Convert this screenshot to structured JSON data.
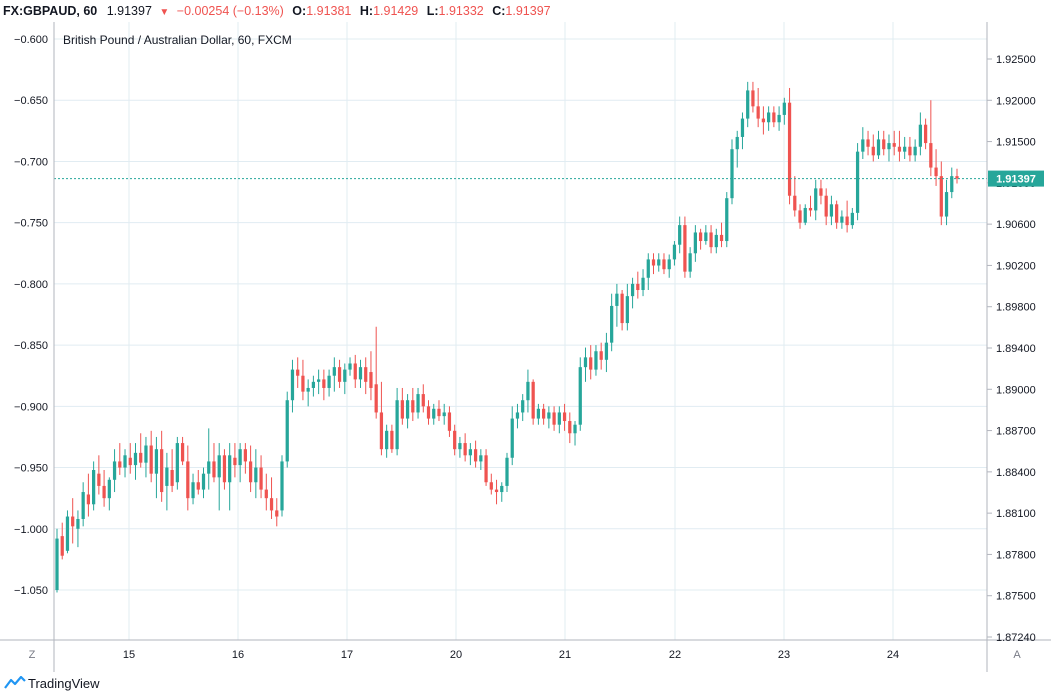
{
  "header": {
    "symbol": "FX:GBPAUD, 60",
    "last": "1.91397",
    "arrow": "▼",
    "change": "−0.00254 (−0.13%)",
    "o_label": "O:",
    "o_value": "1.91381",
    "h_label": "H:",
    "h_value": "1.91429",
    "l_label": "L:",
    "l_value": "1.91332",
    "c_label": "C:",
    "c_value": "1.91397"
  },
  "footer": {
    "brand": "TradingView",
    "left_scale_button": "Z",
    "right_scale_button": "A"
  },
  "colors": {
    "up": "#26a69a",
    "down": "#ef5350",
    "grid": "#e1ecf2",
    "price_line": "#26a69a",
    "text": "#131722"
  },
  "chart_data": {
    "type": "candlestick",
    "title": "British Pound / Australian Dollar, 60, FXCM",
    "left_axis": {
      "ticks": [
        "−0.600",
        "−0.650",
        "−0.700",
        "−0.750",
        "−0.800",
        "−0.850",
        "−0.900",
        "−0.950",
        "−1.000",
        "−1.050"
      ],
      "ylim": [
        -1.1,
        -0.585
      ]
    },
    "right_axis": {
      "ticks": [
        "1.92500",
        "1.92000",
        "1.91500",
        "1.91000",
        "1.90600",
        "1.90200",
        "1.89800",
        "1.89400",
        "1.89000",
        "1.88700",
        "1.88400",
        "1.88100",
        "1.87800",
        "1.87500",
        "1.87240"
      ]
    },
    "x_ticks": [
      "15",
      "16",
      "17",
      "20",
      "21",
      "22",
      "23",
      "24"
    ],
    "current_price": -0.714,
    "current_price_label": "1.91397",
    "candles": [
      {
        "o": -1.05,
        "h": -1.0,
        "l": -1.052,
        "c": -1.008
      },
      {
        "o": -1.006,
        "h": -0.995,
        "l": -1.025,
        "c": -1.022
      },
      {
        "o": -1.018,
        "h": -0.985,
        "l": -1.02,
        "c": -0.99
      },
      {
        "o": -0.99,
        "h": -0.975,
        "l": -1.012,
        "c": -0.998
      },
      {
        "o": -1.0,
        "h": -0.985,
        "l": -1.015,
        "c": -0.992
      },
      {
        "o": -0.992,
        "h": -0.962,
        "l": -0.998,
        "c": -0.97
      },
      {
        "o": -0.972,
        "h": -0.955,
        "l": -0.99,
        "c": -0.98
      },
      {
        "o": -0.98,
        "h": -0.945,
        "l": -0.985,
        "c": -0.952
      },
      {
        "o": -0.955,
        "h": -0.94,
        "l": -0.972,
        "c": -0.965
      },
      {
        "o": -0.965,
        "h": -0.952,
        "l": -0.982,
        "c": -0.975
      },
      {
        "o": -0.975,
        "h": -0.958,
        "l": -0.985,
        "c": -0.96
      },
      {
        "o": -0.96,
        "h": -0.935,
        "l": -0.97,
        "c": -0.945
      },
      {
        "o": -0.945,
        "h": -0.93,
        "l": -0.956,
        "c": -0.95
      },
      {
        "o": -0.95,
        "h": -0.935,
        "l": -0.958,
        "c": -0.94
      },
      {
        "o": -0.942,
        "h": -0.93,
        "l": -0.955,
        "c": -0.948
      },
      {
        "o": -0.948,
        "h": -0.93,
        "l": -0.96,
        "c": -0.938
      },
      {
        "o": -0.938,
        "h": -0.922,
        "l": -0.95,
        "c": -0.946
      },
      {
        "o": -0.946,
        "h": -0.925,
        "l": -0.958,
        "c": -0.932
      },
      {
        "o": -0.932,
        "h": -0.92,
        "l": -0.962,
        "c": -0.955
      },
      {
        "o": -0.955,
        "h": -0.925,
        "l": -0.975,
        "c": -0.935
      },
      {
        "o": -0.935,
        "h": -0.92,
        "l": -0.978,
        "c": -0.97
      },
      {
        "o": -0.965,
        "h": -0.938,
        "l": -0.985,
        "c": -0.95
      },
      {
        "o": -0.952,
        "h": -0.935,
        "l": -0.97,
        "c": -0.965
      },
      {
        "o": -0.962,
        "h": -0.925,
        "l": -0.968,
        "c": -0.93
      },
      {
        "o": -0.93,
        "h": -0.925,
        "l": -0.948,
        "c": -0.945
      },
      {
        "o": -0.945,
        "h": -0.932,
        "l": -0.985,
        "c": -0.975
      },
      {
        "o": -0.975,
        "h": -0.955,
        "l": -0.98,
        "c": -0.962
      },
      {
        "o": -0.962,
        "h": -0.952,
        "l": -0.972,
        "c": -0.968
      },
      {
        "o": -0.968,
        "h": -0.95,
        "l": -0.975,
        "c": -0.955
      },
      {
        "o": -0.955,
        "h": -0.918,
        "l": -0.968,
        "c": -0.945
      },
      {
        "o": -0.945,
        "h": -0.93,
        "l": -0.962,
        "c": -0.958
      },
      {
        "o": -0.958,
        "h": -0.93,
        "l": -0.985,
        "c": -0.94
      },
      {
        "o": -0.94,
        "h": -0.935,
        "l": -0.968,
        "c": -0.962
      },
      {
        "o": -0.962,
        "h": -0.93,
        "l": -0.985,
        "c": -0.94
      },
      {
        "o": -0.942,
        "h": -0.93,
        "l": -0.958,
        "c": -0.948
      },
      {
        "o": -0.948,
        "h": -0.93,
        "l": -0.962,
        "c": -0.935
      },
      {
        "o": -0.935,
        "h": -0.93,
        "l": -0.955,
        "c": -0.945
      },
      {
        "o": -0.945,
        "h": -0.932,
        "l": -0.97,
        "c": -0.962
      },
      {
        "o": -0.962,
        "h": -0.935,
        "l": -0.975,
        "c": -0.95
      },
      {
        "o": -0.95,
        "h": -0.94,
        "l": -0.975,
        "c": -0.968
      },
      {
        "o": -0.968,
        "h": -0.955,
        "l": -0.985,
        "c": -0.975
      },
      {
        "o": -0.975,
        "h": -0.958,
        "l": -0.992,
        "c": -0.985
      },
      {
        "o": -0.985,
        "h": -0.975,
        "l": -0.998,
        "c": -0.99
      },
      {
        "o": -0.985,
        "h": -0.94,
        "l": -0.99,
        "c": -0.945
      },
      {
        "o": -0.945,
        "h": -0.888,
        "l": -0.95,
        "c": -0.895
      },
      {
        "o": -0.895,
        "h": -0.862,
        "l": -0.905,
        "c": -0.87
      },
      {
        "o": -0.87,
        "h": -0.86,
        "l": -0.885,
        "c": -0.875
      },
      {
        "o": -0.875,
        "h": -0.862,
        "l": -0.895,
        "c": -0.888
      },
      {
        "o": -0.888,
        "h": -0.878,
        "l": -0.9,
        "c": -0.885
      },
      {
        "o": -0.885,
        "h": -0.875,
        "l": -0.892,
        "c": -0.88
      },
      {
        "o": -0.88,
        "h": -0.87,
        "l": -0.89,
        "c": -0.878
      },
      {
        "o": -0.878,
        "h": -0.87,
        "l": -0.895,
        "c": -0.885
      },
      {
        "o": -0.885,
        "h": -0.87,
        "l": -0.892,
        "c": -0.875
      },
      {
        "o": -0.875,
        "h": -0.86,
        "l": -0.888,
        "c": -0.868
      },
      {
        "o": -0.868,
        "h": -0.862,
        "l": -0.885,
        "c": -0.88
      },
      {
        "o": -0.88,
        "h": -0.865,
        "l": -0.89,
        "c": -0.87
      },
      {
        "o": -0.87,
        "h": -0.86,
        "l": -0.875,
        "c": -0.865
      },
      {
        "o": -0.865,
        "h": -0.858,
        "l": -0.885,
        "c": -0.878
      },
      {
        "o": -0.878,
        "h": -0.862,
        "l": -0.885,
        "c": -0.868
      },
      {
        "o": -0.868,
        "h": -0.86,
        "l": -0.89,
        "c": -0.88
      },
      {
        "o": -0.872,
        "h": -0.855,
        "l": -0.895,
        "c": -0.885
      },
      {
        "o": -0.882,
        "h": -0.835,
        "l": -0.91,
        "c": -0.905
      },
      {
        "o": -0.905,
        "h": -0.88,
        "l": -0.94,
        "c": -0.935
      },
      {
        "o": -0.935,
        "h": -0.915,
        "l": -0.942,
        "c": -0.92
      },
      {
        "o": -0.92,
        "h": -0.915,
        "l": -0.938,
        "c": -0.935
      },
      {
        "o": -0.935,
        "h": -0.885,
        "l": -0.94,
        "c": -0.895
      },
      {
        "o": -0.895,
        "h": -0.885,
        "l": -0.915,
        "c": -0.91
      },
      {
        "o": -0.91,
        "h": -0.89,
        "l": -0.918,
        "c": -0.895
      },
      {
        "o": -0.895,
        "h": -0.885,
        "l": -0.912,
        "c": -0.905
      },
      {
        "o": -0.905,
        "h": -0.885,
        "l": -0.91,
        "c": -0.89
      },
      {
        "o": -0.89,
        "h": -0.882,
        "l": -0.905,
        "c": -0.9
      },
      {
        "o": -0.9,
        "h": -0.895,
        "l": -0.915,
        "c": -0.91
      },
      {
        "o": -0.91,
        "h": -0.898,
        "l": -0.915,
        "c": -0.902
      },
      {
        "o": -0.902,
        "h": -0.895,
        "l": -0.912,
        "c": -0.908
      },
      {
        "o": -0.908,
        "h": -0.898,
        "l": -0.915,
        "c": -0.905
      },
      {
        "o": -0.905,
        "h": -0.9,
        "l": -0.925,
        "c": -0.92
      },
      {
        "o": -0.92,
        "h": -0.915,
        "l": -0.94,
        "c": -0.935
      },
      {
        "o": -0.935,
        "h": -0.925,
        "l": -0.942,
        "c": -0.93
      },
      {
        "o": -0.93,
        "h": -0.922,
        "l": -0.945,
        "c": -0.94
      },
      {
        "o": -0.94,
        "h": -0.93,
        "l": -0.948,
        "c": -0.935
      },
      {
        "o": -0.935,
        "h": -0.928,
        "l": -0.95,
        "c": -0.945
      },
      {
        "o": -0.945,
        "h": -0.935,
        "l": -0.952,
        "c": -0.94
      },
      {
        "o": -0.94,
        "h": -0.935,
        "l": -0.965,
        "c": -0.962
      },
      {
        "o": -0.962,
        "h": -0.955,
        "l": -0.972,
        "c": -0.968
      },
      {
        "o": -0.968,
        "h": -0.96,
        "l": -0.98,
        "c": -0.97
      },
      {
        "o": -0.97,
        "h": -0.962,
        "l": -0.978,
        "c": -0.965
      },
      {
        "o": -0.965,
        "h": -0.938,
        "l": -0.97,
        "c": -0.942
      },
      {
        "o": -0.942,
        "h": -0.9,
        "l": -0.948,
        "c": -0.91
      },
      {
        "o": -0.91,
        "h": -0.898,
        "l": -0.918,
        "c": -0.905
      },
      {
        "o": -0.905,
        "h": -0.89,
        "l": -0.912,
        "c": -0.895
      },
      {
        "o": -0.895,
        "h": -0.87,
        "l": -0.905,
        "c": -0.88
      },
      {
        "o": -0.88,
        "h": -0.878,
        "l": -0.915,
        "c": -0.91
      },
      {
        "o": -0.91,
        "h": -0.898,
        "l": -0.915,
        "c": -0.902
      },
      {
        "o": -0.902,
        "h": -0.898,
        "l": -0.915,
        "c": -0.91
      },
      {
        "o": -0.91,
        "h": -0.9,
        "l": -0.918,
        "c": -0.905
      },
      {
        "o": -0.905,
        "h": -0.9,
        "l": -0.92,
        "c": -0.915
      },
      {
        "o": -0.915,
        "h": -0.9,
        "l": -0.922,
        "c": -0.905
      },
      {
        "o": -0.905,
        "h": -0.898,
        "l": -0.92,
        "c": -0.912
      },
      {
        "o": -0.912,
        "h": -0.905,
        "l": -0.93,
        "c": -0.922
      },
      {
        "o": -0.922,
        "h": -0.912,
        "l": -0.932,
        "c": -0.915
      },
      {
        "o": -0.915,
        "h": -0.86,
        "l": -0.92,
        "c": -0.868
      },
      {
        "o": -0.868,
        "h": -0.852,
        "l": -0.88,
        "c": -0.86
      },
      {
        "o": -0.86,
        "h": -0.85,
        "l": -0.878,
        "c": -0.87
      },
      {
        "o": -0.87,
        "h": -0.85,
        "l": -0.875,
        "c": -0.855
      },
      {
        "o": -0.855,
        "h": -0.848,
        "l": -0.87,
        "c": -0.862
      },
      {
        "o": -0.862,
        "h": -0.84,
        "l": -0.872,
        "c": -0.848
      },
      {
        "o": -0.848,
        "h": -0.808,
        "l": -0.855,
        "c": -0.818
      },
      {
        "o": -0.818,
        "h": -0.8,
        "l": -0.835,
        "c": -0.808
      },
      {
        "o": -0.808,
        "h": -0.805,
        "l": -0.838,
        "c": -0.832
      },
      {
        "o": -0.832,
        "h": -0.8,
        "l": -0.838,
        "c": -0.81
      },
      {
        "o": -0.81,
        "h": -0.795,
        "l": -0.82,
        "c": -0.8
      },
      {
        "o": -0.8,
        "h": -0.79,
        "l": -0.812,
        "c": -0.805
      },
      {
        "o": -0.805,
        "h": -0.788,
        "l": -0.81,
        "c": -0.795
      },
      {
        "o": -0.795,
        "h": -0.775,
        "l": -0.805,
        "c": -0.78
      },
      {
        "o": -0.78,
        "h": -0.775,
        "l": -0.792,
        "c": -0.785
      },
      {
        "o": -0.785,
        "h": -0.775,
        "l": -0.79,
        "c": -0.78
      },
      {
        "o": -0.78,
        "h": -0.775,
        "l": -0.792,
        "c": -0.788
      },
      {
        "o": -0.788,
        "h": -0.776,
        "l": -0.795,
        "c": -0.78
      },
      {
        "o": -0.78,
        "h": -0.765,
        "l": -0.785,
        "c": -0.768
      },
      {
        "o": -0.768,
        "h": -0.745,
        "l": -0.775,
        "c": -0.752
      },
      {
        "o": -0.752,
        "h": -0.745,
        "l": -0.795,
        "c": -0.79
      },
      {
        "o": -0.79,
        "h": -0.77,
        "l": -0.795,
        "c": -0.775
      },
      {
        "o": -0.775,
        "h": -0.752,
        "l": -0.782,
        "c": -0.758
      },
      {
        "o": -0.758,
        "h": -0.755,
        "l": -0.772,
        "c": -0.765
      },
      {
        "o": -0.765,
        "h": -0.752,
        "l": -0.768,
        "c": -0.758
      },
      {
        "o": -0.758,
        "h": -0.752,
        "l": -0.775,
        "c": -0.77
      },
      {
        "o": -0.77,
        "h": -0.755,
        "l": -0.775,
        "c": -0.76
      },
      {
        "o": -0.76,
        "h": -0.75,
        "l": -0.77,
        "c": -0.765
      },
      {
        "o": -0.765,
        "h": -0.725,
        "l": -0.77,
        "c": -0.73
      },
      {
        "o": -0.73,
        "h": -0.682,
        "l": -0.735,
        "c": -0.69
      },
      {
        "o": -0.69,
        "h": -0.675,
        "l": -0.705,
        "c": -0.68
      },
      {
        "o": -0.68,
        "h": -0.66,
        "l": -0.69,
        "c": -0.665
      },
      {
        "o": -0.665,
        "h": -0.635,
        "l": -0.672,
        "c": -0.642
      },
      {
        "o": -0.642,
        "h": -0.635,
        "l": -0.66,
        "c": -0.655
      },
      {
        "o": -0.655,
        "h": -0.64,
        "l": -0.672,
        "c": -0.665
      },
      {
        "o": -0.665,
        "h": -0.655,
        "l": -0.678,
        "c": -0.668
      },
      {
        "o": -0.668,
        "h": -0.655,
        "l": -0.675,
        "c": -0.66
      },
      {
        "o": -0.66,
        "h": -0.655,
        "l": -0.672,
        "c": -0.668
      },
      {
        "o": -0.668,
        "h": -0.655,
        "l": -0.675,
        "c": -0.662
      },
      {
        "o": -0.662,
        "h": -0.648,
        "l": -0.67,
        "c": -0.652
      },
      {
        "o": -0.652,
        "h": -0.64,
        "l": -0.735,
        "c": -0.728
      },
      {
        "o": -0.728,
        "h": -0.712,
        "l": -0.745,
        "c": -0.74
      },
      {
        "o": -0.74,
        "h": -0.735,
        "l": -0.755,
        "c": -0.75
      },
      {
        "o": -0.75,
        "h": -0.735,
        "l": -0.752,
        "c": -0.738
      },
      {
        "o": -0.738,
        "h": -0.728,
        "l": -0.745,
        "c": -0.74
      },
      {
        "o": -0.74,
        "h": -0.715,
        "l": -0.748,
        "c": -0.722
      },
      {
        "o": -0.722,
        "h": -0.715,
        "l": -0.735,
        "c": -0.728
      },
      {
        "o": -0.728,
        "h": -0.722,
        "l": -0.752,
        "c": -0.745
      },
      {
        "o": -0.745,
        "h": -0.728,
        "l": -0.752,
        "c": -0.735
      },
      {
        "o": -0.735,
        "h": -0.732,
        "l": -0.755,
        "c": -0.75
      },
      {
        "o": -0.75,
        "h": -0.74,
        "l": -0.755,
        "c": -0.745
      },
      {
        "o": -0.745,
        "h": -0.732,
        "l": -0.758,
        "c": -0.752
      },
      {
        "o": -0.752,
        "h": -0.738,
        "l": -0.755,
        "c": -0.742
      },
      {
        "o": -0.742,
        "h": -0.685,
        "l": -0.748,
        "c": -0.692
      },
      {
        "o": -0.692,
        "h": -0.672,
        "l": -0.698,
        "c": -0.682
      },
      {
        "o": -0.682,
        "h": -0.675,
        "l": -0.695,
        "c": -0.688
      },
      {
        "o": -0.688,
        "h": -0.678,
        "l": -0.7,
        "c": -0.695
      },
      {
        "o": -0.695,
        "h": -0.675,
        "l": -0.698,
        "c": -0.682
      },
      {
        "o": -0.682,
        "h": -0.675,
        "l": -0.695,
        "c": -0.69
      },
      {
        "o": -0.69,
        "h": -0.678,
        "l": -0.7,
        "c": -0.685
      },
      {
        "o": -0.685,
        "h": -0.675,
        "l": -0.695,
        "c": -0.688
      },
      {
        "o": -0.688,
        "h": -0.675,
        "l": -0.7,
        "c": -0.692
      },
      {
        "o": -0.692,
        "h": -0.68,
        "l": -0.698,
        "c": -0.688
      },
      {
        "o": -0.688,
        "h": -0.68,
        "l": -0.7,
        "c": -0.695
      },
      {
        "o": -0.695,
        "h": -0.682,
        "l": -0.7,
        "c": -0.688
      },
      {
        "o": -0.688,
        "h": -0.66,
        "l": -0.695,
        "c": -0.67
      },
      {
        "o": -0.67,
        "h": -0.665,
        "l": -0.69,
        "c": -0.685
      },
      {
        "o": -0.685,
        "h": -0.65,
        "l": -0.712,
        "c": -0.705
      },
      {
        "o": -0.705,
        "h": -0.69,
        "l": -0.72,
        "c": -0.712
      },
      {
        "o": -0.712,
        "h": -0.7,
        "l": -0.752,
        "c": -0.745
      },
      {
        "o": -0.745,
        "h": -0.715,
        "l": -0.752,
        "c": -0.725
      },
      {
        "o": -0.725,
        "h": -0.705,
        "l": -0.73,
        "c": -0.712
      },
      {
        "o": -0.712,
        "h": -0.706,
        "l": -0.718,
        "c": -0.714
      }
    ]
  }
}
